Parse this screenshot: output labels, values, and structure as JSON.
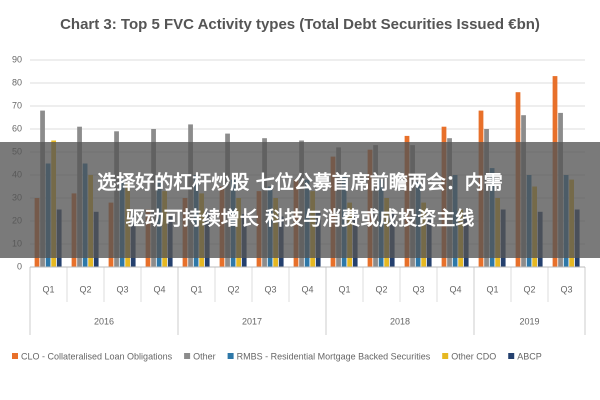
{
  "chart_data": {
    "type": "bar",
    "title": "Chart 3: Top 5 FVC Activity types (Total Debt Securities Issued €bn)",
    "groups": [
      {
        "name": "2016",
        "categories": [
          "Q1",
          "Q2",
          "Q3",
          "Q4"
        ]
      },
      {
        "name": "2017",
        "categories": [
          "Q1",
          "Q2",
          "Q3",
          "Q4"
        ]
      },
      {
        "name": "2018",
        "categories": [
          "Q1",
          "Q2",
          "Q3",
          "Q4"
        ]
      },
      {
        "name": "2019",
        "categories": [
          "Q1",
          "Q2",
          "Q3"
        ]
      }
    ],
    "series": [
      {
        "name": "CLO - Collateralised Loan Obligations",
        "color": "#e8702a",
        "values": [
          30,
          32,
          28,
          25,
          30,
          35,
          33,
          38,
          48,
          51,
          57,
          61,
          68,
          76,
          83
        ]
      },
      {
        "name": "Other",
        "color": "#8c8c8c",
        "values": [
          68,
          61,
          59,
          60,
          62,
          58,
          56,
          55,
          52,
          53,
          53,
          56,
          60,
          66,
          67
        ]
      },
      {
        "name": "RMBS - Residential Mortgage Backed Securities",
        "color": "#2e78a8",
        "values": [
          45,
          45,
          38,
          38,
          40,
          38,
          35,
          38,
          40,
          38,
          37,
          40,
          43,
          40,
          40
        ]
      },
      {
        "name": "Other CDO",
        "color": "#e6b822",
        "values": [
          55,
          40,
          36,
          33,
          32,
          30,
          30,
          33,
          28,
          30,
          28,
          25,
          30,
          35,
          38
        ]
      },
      {
        "name": "ABCP",
        "color": "#24406e",
        "values": [
          25,
          24,
          22,
          22,
          24,
          23,
          22,
          24,
          25,
          24,
          22,
          23,
          25,
          24,
          25
        ]
      }
    ],
    "ylim": [
      0,
      90
    ],
    "yticks": [
      0,
      10,
      20,
      30,
      40,
      50,
      60,
      70,
      80,
      90
    ],
    "grid": true
  },
  "overlay": {
    "lines": [
      "选择好的杠杆炒股 七位公募首席前瞻两会：内需",
      "驱动可持续增长 科技与消费或成投资主线"
    ]
  }
}
